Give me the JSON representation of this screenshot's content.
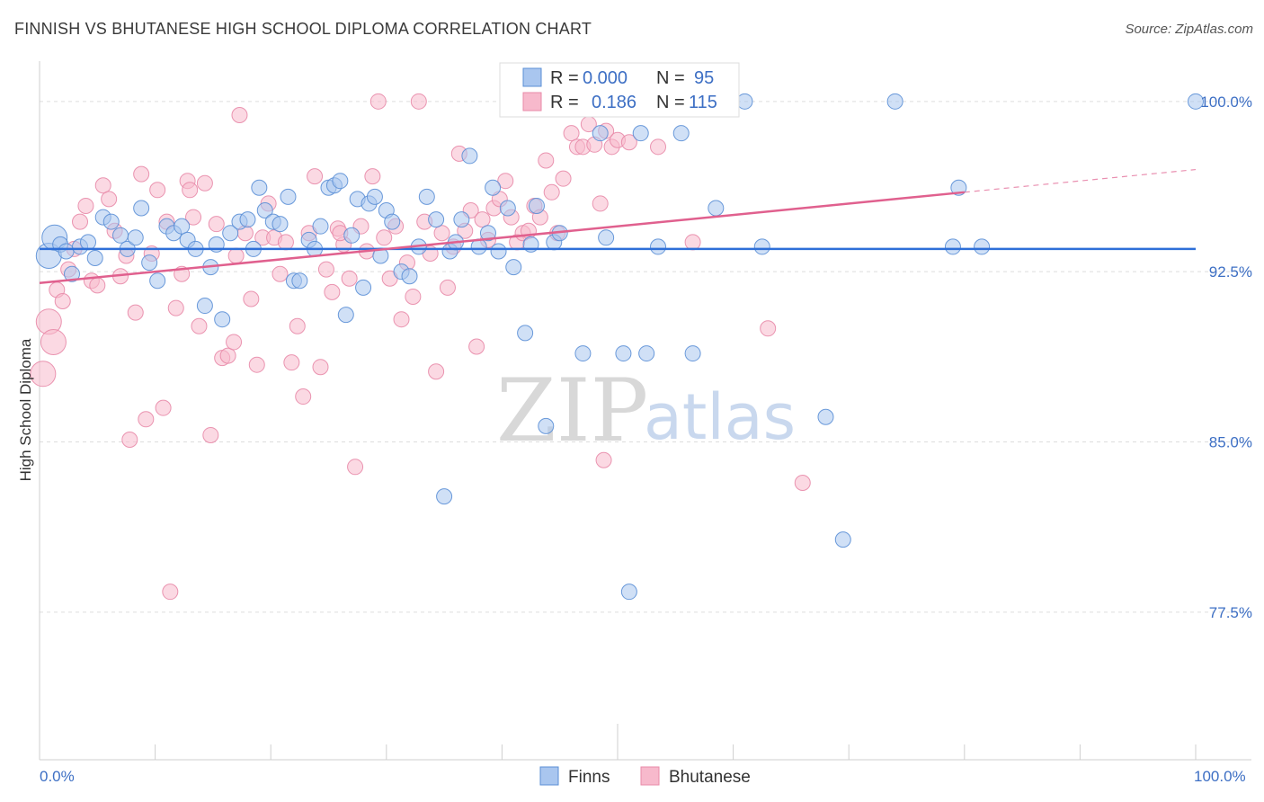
{
  "header": {
    "title": "FINNISH VS BHUTANESE HIGH SCHOOL DIPLOMA CORRELATION CHART",
    "source": "Source: ZipAtlas.com"
  },
  "watermark": {
    "zip": "ZIP",
    "atlas": "atlas"
  },
  "colors": {
    "finns_fill": "#a9c6ef",
    "finns_stroke": "#5b8fd6",
    "finns_line": "#2e6fd8",
    "bhutanese_fill": "#f7b9cc",
    "bhutanese_stroke": "#e88aa8",
    "bhutanese_line": "#e0608e",
    "grid": "#dddddd",
    "axis_text": "#3d6fc4"
  },
  "chart_data": {
    "type": "scatter",
    "title": "FINNISH VS BHUTANESE HIGH SCHOOL DIPLOMA CORRELATION CHART",
    "xlabel": "",
    "ylabel": "High School Diploma",
    "xlim": [
      0,
      100
    ],
    "ylim": [
      71.0,
      101.3
    ],
    "x_tick_labels": [
      "0.0%",
      "100.0%"
    ],
    "y_ticks": [
      77.5,
      85.0,
      92.5,
      100.0
    ],
    "y_tick_labels": [
      "77.5%",
      "85.0%",
      "92.5%",
      "100.0%"
    ],
    "grid": true,
    "legend": {
      "position": "top-center",
      "entries": [
        {
          "series": "Finns",
          "r_label": "R =",
          "r_value": "0.000",
          "n_label": "N =",
          "n_value": "95"
        },
        {
          "series": "Bhutanese",
          "r_label": "R =",
          "r_value": "0.186",
          "n_label": "N =",
          "n_value": "115"
        }
      ]
    },
    "bottom_legend": [
      "Finns",
      "Bhutanese"
    ],
    "trend_lines": [
      {
        "series": "Finns",
        "x0": 0,
        "y0": 93.5,
        "x1": 100,
        "y1": 93.5,
        "dashed_from": null
      },
      {
        "series": "Bhutanese",
        "x0": 0,
        "y0": 92.0,
        "x1": 80,
        "y1": 96.0,
        "dashed_to_x": 100,
        "dashed_to_y": 97.0
      }
    ],
    "series": [
      {
        "name": "Finns",
        "points": [
          [
            0.8,
            93.2
          ],
          [
            1.3,
            94.0
          ],
          [
            1.8,
            93.7
          ],
          [
            2.3,
            93.4
          ],
          [
            2.8,
            92.4
          ],
          [
            3.5,
            93.6
          ],
          [
            4.2,
            93.8
          ],
          [
            4.8,
            93.1
          ],
          [
            5.5,
            94.9
          ],
          [
            6.2,
            94.7
          ],
          [
            7.0,
            94.1
          ],
          [
            7.6,
            93.5
          ],
          [
            8.3,
            94.0
          ],
          [
            8.8,
            95.3
          ],
          [
            9.5,
            92.9
          ],
          [
            10.2,
            92.1
          ],
          [
            11.0,
            94.5
          ],
          [
            11.6,
            94.2
          ],
          [
            12.3,
            94.5
          ],
          [
            12.8,
            93.9
          ],
          [
            13.5,
            93.5
          ],
          [
            14.3,
            91.0
          ],
          [
            14.8,
            92.7
          ],
          [
            15.3,
            93.7
          ],
          [
            15.8,
            90.4
          ],
          [
            16.5,
            94.2
          ],
          [
            17.3,
            94.7
          ],
          [
            18.0,
            94.8
          ],
          [
            18.5,
            93.5
          ],
          [
            19.0,
            96.2
          ],
          [
            19.5,
            95.2
          ],
          [
            20.2,
            94.7
          ],
          [
            20.8,
            94.6
          ],
          [
            21.5,
            95.8
          ],
          [
            22.0,
            92.1
          ],
          [
            22.5,
            92.1
          ],
          [
            23.3,
            93.9
          ],
          [
            23.8,
            93.5
          ],
          [
            24.3,
            94.5
          ],
          [
            25.0,
            96.2
          ],
          [
            25.5,
            96.3
          ],
          [
            26.0,
            96.5
          ],
          [
            26.5,
            90.6
          ],
          [
            27.0,
            94.1
          ],
          [
            27.5,
            95.7
          ],
          [
            28.0,
            91.8
          ],
          [
            28.5,
            95.5
          ],
          [
            29.0,
            95.8
          ],
          [
            29.5,
            93.2
          ],
          [
            30.0,
            95.2
          ],
          [
            30.5,
            94.7
          ],
          [
            31.3,
            92.5
          ],
          [
            32.0,
            92.3
          ],
          [
            32.8,
            93.6
          ],
          [
            33.5,
            95.8
          ],
          [
            34.3,
            94.8
          ],
          [
            35.0,
            82.6
          ],
          [
            35.5,
            93.4
          ],
          [
            36.0,
            93.8
          ],
          [
            36.5,
            94.8
          ],
          [
            37.2,
            97.6
          ],
          [
            38.0,
            93.6
          ],
          [
            38.8,
            94.2
          ],
          [
            39.2,
            96.2
          ],
          [
            39.7,
            93.4
          ],
          [
            40.5,
            95.3
          ],
          [
            41.0,
            92.7
          ],
          [
            42.0,
            89.8
          ],
          [
            42.5,
            93.7
          ],
          [
            43.0,
            95.4
          ],
          [
            43.8,
            85.7
          ],
          [
            44.5,
            93.8
          ],
          [
            45.0,
            94.2
          ],
          [
            47.0,
            88.9
          ],
          [
            48.5,
            98.6
          ],
          [
            49.0,
            94.0
          ],
          [
            50.0,
            100.0
          ],
          [
            50.5,
            88.9
          ],
          [
            52.0,
            98.6
          ],
          [
            52.5,
            88.9
          ],
          [
            53.5,
            93.6
          ],
          [
            55.5,
            98.6
          ],
          [
            57.5,
            100.0
          ],
          [
            61.0,
            100.0
          ],
          [
            56.5,
            88.9
          ],
          [
            58.5,
            95.3
          ],
          [
            62.5,
            93.6
          ],
          [
            68.0,
            86.1
          ],
          [
            69.5,
            80.7
          ],
          [
            74.0,
            100.0
          ],
          [
            79.0,
            93.6
          ],
          [
            79.5,
            96.2
          ],
          [
            81.5,
            93.6
          ],
          [
            100.0,
            100.0
          ],
          [
            51.0,
            78.4
          ]
        ]
      },
      {
        "name": "Bhutanese",
        "points": [
          [
            0.3,
            88.0
          ],
          [
            0.8,
            90.3
          ],
          [
            1.2,
            89.4
          ],
          [
            1.5,
            91.7
          ],
          [
            2.0,
            91.2
          ],
          [
            2.5,
            92.6
          ],
          [
            3.0,
            93.5
          ],
          [
            3.5,
            94.7
          ],
          [
            4.0,
            95.4
          ],
          [
            4.5,
            92.1
          ],
          [
            5.0,
            91.9
          ],
          [
            5.5,
            96.3
          ],
          [
            6.0,
            95.7
          ],
          [
            6.5,
            94.3
          ],
          [
            7.0,
            92.3
          ],
          [
            7.5,
            93.2
          ],
          [
            7.8,
            85.1
          ],
          [
            8.3,
            90.7
          ],
          [
            8.8,
            96.8
          ],
          [
            9.2,
            86.0
          ],
          [
            9.7,
            93.3
          ],
          [
            10.2,
            96.1
          ],
          [
            10.7,
            86.5
          ],
          [
            11.0,
            94.7
          ],
          [
            11.3,
            78.4
          ],
          [
            11.8,
            90.9
          ],
          [
            12.3,
            92.4
          ],
          [
            12.8,
            96.5
          ],
          [
            13.3,
            94.9
          ],
          [
            13.8,
            90.1
          ],
          [
            14.3,
            96.4
          ],
          [
            14.8,
            85.3
          ],
          [
            15.3,
            94.6
          ],
          [
            15.8,
            88.7
          ],
          [
            16.3,
            88.8
          ],
          [
            16.8,
            89.4
          ],
          [
            17.3,
            99.4
          ],
          [
            17.8,
            94.2
          ],
          [
            18.3,
            91.3
          ],
          [
            18.8,
            88.4
          ],
          [
            19.3,
            94.0
          ],
          [
            19.8,
            95.5
          ],
          [
            20.3,
            94.0
          ],
          [
            20.8,
            92.4
          ],
          [
            21.3,
            93.8
          ],
          [
            21.8,
            88.5
          ],
          [
            22.3,
            90.1
          ],
          [
            22.8,
            87.0
          ],
          [
            23.3,
            94.2
          ],
          [
            23.8,
            96.7
          ],
          [
            24.3,
            88.3
          ],
          [
            24.8,
            92.6
          ],
          [
            25.3,
            91.6
          ],
          [
            25.8,
            94.4
          ],
          [
            26.3,
            93.7
          ],
          [
            26.8,
            92.2
          ],
          [
            27.3,
            83.9
          ],
          [
            27.8,
            94.5
          ],
          [
            28.3,
            93.4
          ],
          [
            28.8,
            96.7
          ],
          [
            29.3,
            100.0
          ],
          [
            29.8,
            94.0
          ],
          [
            30.3,
            92.2
          ],
          [
            30.8,
            94.5
          ],
          [
            31.3,
            90.4
          ],
          [
            31.8,
            92.9
          ],
          [
            32.3,
            91.4
          ],
          [
            32.8,
            100.0
          ],
          [
            33.3,
            94.7
          ],
          [
            33.8,
            93.3
          ],
          [
            34.3,
            88.1
          ],
          [
            34.8,
            94.2
          ],
          [
            35.3,
            91.8
          ],
          [
            35.8,
            93.6
          ],
          [
            36.3,
            97.7
          ],
          [
            36.8,
            94.3
          ],
          [
            37.3,
            95.2
          ],
          [
            37.8,
            89.2
          ],
          [
            38.3,
            94.8
          ],
          [
            38.8,
            93.9
          ],
          [
            39.3,
            95.3
          ],
          [
            39.8,
            95.7
          ],
          [
            40.3,
            96.5
          ],
          [
            40.8,
            94.9
          ],
          [
            41.3,
            93.8
          ],
          [
            41.8,
            94.2
          ],
          [
            42.3,
            94.3
          ],
          [
            42.8,
            95.4
          ],
          [
            43.3,
            94.9
          ],
          [
            43.8,
            97.4
          ],
          [
            44.3,
            96.0
          ],
          [
            44.8,
            94.2
          ],
          [
            45.3,
            96.6
          ],
          [
            46.0,
            98.6
          ],
          [
            46.5,
            98.0
          ],
          [
            47.0,
            98.0
          ],
          [
            47.5,
            99.0
          ],
          [
            48.0,
            98.1
          ],
          [
            48.5,
            95.5
          ],
          [
            49.0,
            98.7
          ],
          [
            49.5,
            98.0
          ],
          [
            50.0,
            98.3
          ],
          [
            50.5,
            100.0
          ],
          [
            51.0,
            98.2
          ],
          [
            51.5,
            100.0
          ],
          [
            48.8,
            84.2
          ],
          [
            52.0,
            100.0
          ],
          [
            53.0,
            100.0
          ],
          [
            53.5,
            98.0
          ],
          [
            56.5,
            93.8
          ],
          [
            63.0,
            90.0
          ],
          [
            66.0,
            83.2
          ],
          [
            13.0,
            96.1
          ],
          [
            17.0,
            93.2
          ],
          [
            26.0,
            94.2
          ]
        ]
      }
    ]
  }
}
